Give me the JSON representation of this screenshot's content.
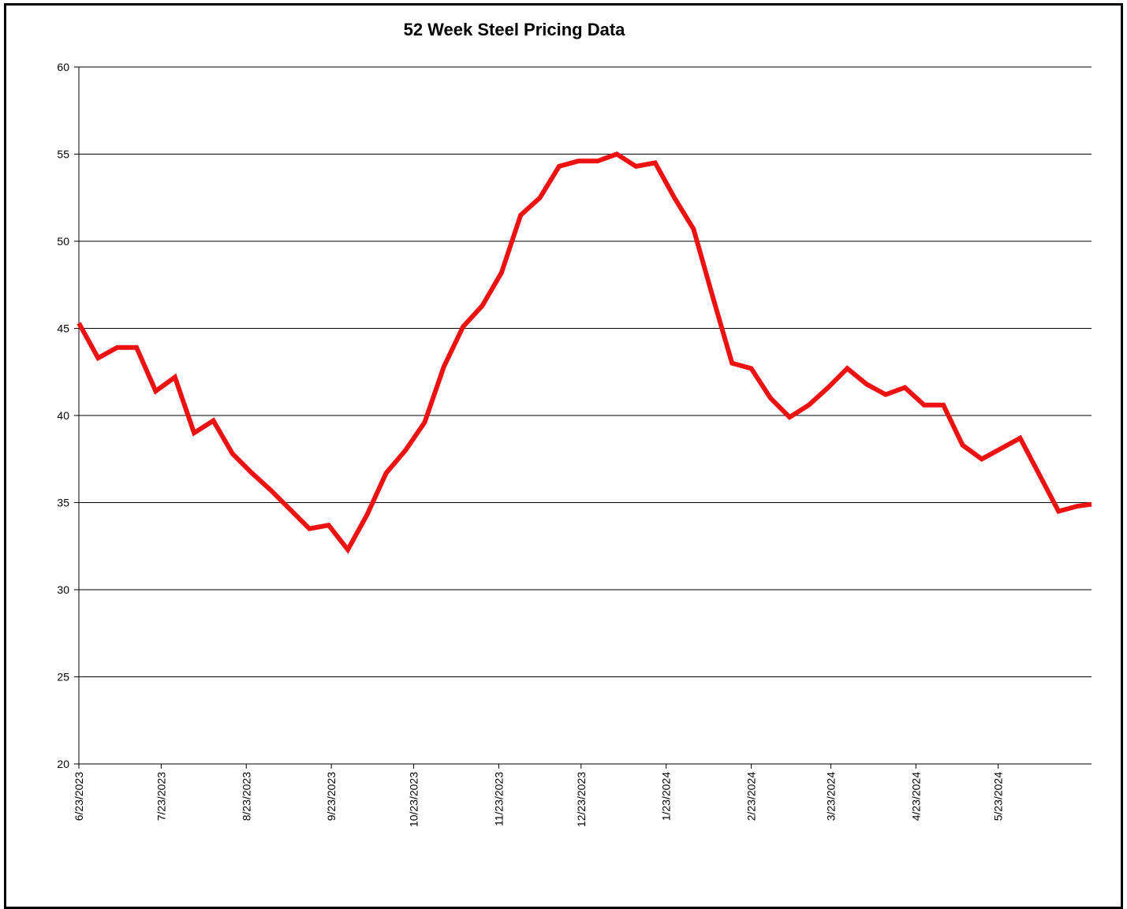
{
  "chart_data": {
    "type": "line",
    "title": "52 Week Steel Pricing Data",
    "xlabel": "",
    "ylabel": "",
    "ylim": [
      20,
      60
    ],
    "yticks": [
      20,
      25,
      30,
      35,
      40,
      45,
      50,
      55,
      60
    ],
    "xlim": [
      "2023-06-23",
      "2024-06-26"
    ],
    "xtick_dates": [
      "2023-06-23",
      "2023-07-23",
      "2023-08-23",
      "2023-09-23",
      "2023-10-23",
      "2023-11-23",
      "2023-12-23",
      "2024-01-23",
      "2024-02-23",
      "2024-03-23",
      "2024-04-23",
      "2024-05-23"
    ],
    "xtick_labels": [
      "6/23/2023",
      "7/23/2023",
      "8/23/2023",
      "9/23/2023",
      "10/23/2023",
      "11/23/2023",
      "12/23/2023",
      "1/23/2024",
      "2/23/2024",
      "3/23/2024",
      "4/23/2024",
      "5/23/2024"
    ],
    "grid": true,
    "line_color": "#ee1111",
    "series": [
      {
        "x": [
          "2023-06-23",
          "2023-06-30",
          "2023-07-07",
          "2023-07-14",
          "2023-07-21",
          "2023-07-28",
          "2023-08-04",
          "2023-08-11",
          "2023-08-18",
          "2023-08-25",
          "2023-09-01",
          "2023-09-08",
          "2023-09-15",
          "2023-09-22",
          "2023-09-29",
          "2023-10-06",
          "2023-10-13",
          "2023-10-20",
          "2023-10-27",
          "2023-11-03",
          "2023-11-10",
          "2023-11-17",
          "2023-11-24",
          "2023-12-01",
          "2023-12-08",
          "2023-12-15",
          "2023-12-22",
          "2023-12-29",
          "2024-01-05",
          "2024-01-12",
          "2024-01-19",
          "2024-01-26",
          "2024-02-02",
          "2024-02-09",
          "2024-02-16",
          "2024-02-23",
          "2024-03-01",
          "2024-03-08",
          "2024-03-15",
          "2024-03-22",
          "2024-03-29",
          "2024-04-05",
          "2024-04-12",
          "2024-04-19",
          "2024-04-26",
          "2024-05-03",
          "2024-05-10",
          "2024-05-17",
          "2024-05-24",
          "2024-05-31",
          "2024-06-07",
          "2024-06-14",
          "2024-06-21",
          "2024-06-26"
        ],
        "values": [
          45.3,
          43.3,
          43.9,
          43.9,
          41.4,
          42.2,
          39.0,
          39.7,
          37.8,
          36.7,
          35.7,
          34.6,
          33.5,
          33.7,
          32.3,
          34.3,
          36.7,
          38.0,
          39.6,
          42.8,
          45.1,
          46.3,
          48.2,
          51.5,
          52.5,
          54.3,
          54.6,
          54.6,
          55.0,
          54.3,
          54.5,
          52.5,
          50.7,
          46.8,
          43.0,
          42.7,
          41.0,
          39.9,
          40.6,
          41.6,
          42.7,
          41.8,
          41.2,
          41.6,
          40.6,
          40.6,
          38.3,
          37.5,
          38.1,
          38.7,
          36.6,
          34.5,
          34.8,
          34.9
        ]
      }
    ]
  }
}
